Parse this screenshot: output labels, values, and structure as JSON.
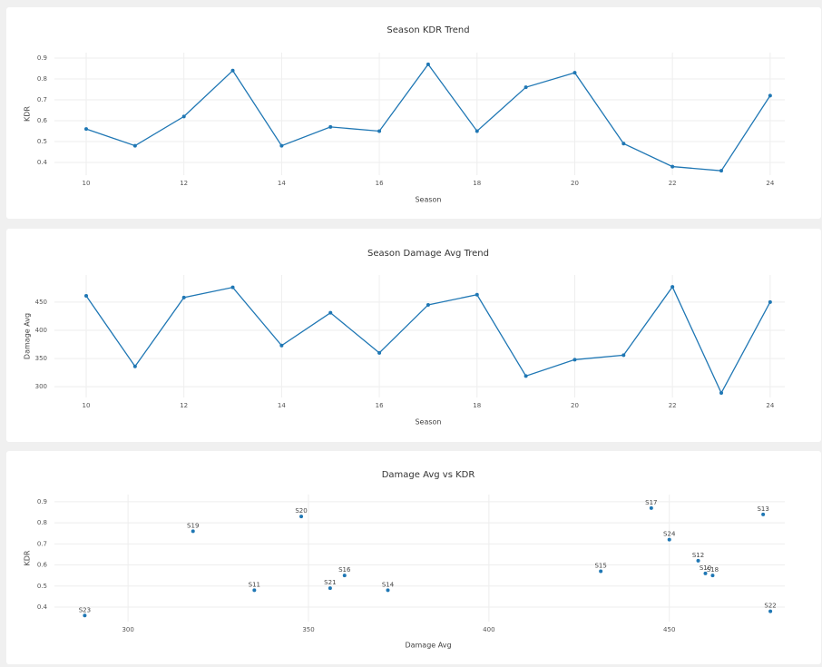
{
  "chart_data": [
    {
      "type": "line",
      "title": "Season KDR Trend",
      "x_label": "Season",
      "y_label": "KDR",
      "x": [
        10,
        11,
        12,
        13,
        14,
        15,
        16,
        17,
        18,
        19,
        20,
        21,
        22,
        23,
        24
      ],
      "values": [
        0.56,
        0.48,
        0.62,
        0.84,
        0.48,
        0.57,
        0.55,
        0.87,
        0.55,
        0.76,
        0.83,
        0.49,
        0.38,
        0.36,
        0.72
      ],
      "color": "#1f77b4",
      "xlim": [
        9.35,
        24.3
      ],
      "ylim": [
        0.339,
        0.926
      ],
      "xticks": [
        10,
        12,
        14,
        16,
        18,
        20,
        22,
        24
      ],
      "yticks": [
        0.4,
        0.5,
        0.6,
        0.7,
        0.8,
        0.9
      ],
      "grid": true
    },
    {
      "type": "line",
      "title": "Season Damage Avg Trend",
      "x_label": "Season",
      "y_label": "Damage Avg",
      "x": [
        10,
        11,
        12,
        13,
        14,
        15,
        16,
        17,
        18,
        19,
        20,
        21,
        22,
        23,
        24
      ],
      "values": [
        461,
        336,
        458,
        476,
        373,
        431,
        360,
        445,
        463,
        319,
        348,
        356,
        477,
        289,
        450
      ],
      "color": "#1f77b4",
      "xlim": [
        9.35,
        24.3
      ],
      "ylim": [
        281,
        498
      ],
      "xticks": [
        10,
        12,
        14,
        16,
        18,
        20,
        22,
        24
      ],
      "yticks": [
        300,
        350,
        400,
        450
      ],
      "grid": true
    },
    {
      "type": "scatter",
      "title": "Damage Avg vs KDR",
      "x_label": "Damage Avg",
      "y_label": "KDR",
      "labels": [
        "S10",
        "S11",
        "S12",
        "S13",
        "S14",
        "S15",
        "S16",
        "S17",
        "S18",
        "S19",
        "S20",
        "S21",
        "S22",
        "S23",
        "S24"
      ],
      "x": [
        460,
        335,
        458,
        476,
        372,
        431,
        360,
        445,
        462,
        318,
        348,
        356,
        478,
        288,
        450
      ],
      "values": [
        0.56,
        0.48,
        0.62,
        0.84,
        0.48,
        0.57,
        0.55,
        0.87,
        0.55,
        0.76,
        0.83,
        0.49,
        0.38,
        0.36,
        0.72
      ],
      "color": "#1f77b4",
      "xlim": [
        279.6,
        482
      ],
      "ylim": [
        0.331,
        0.934
      ],
      "xticks": [
        300,
        350,
        400,
        450
      ],
      "yticks": [
        0.4,
        0.5,
        0.6,
        0.7,
        0.8,
        0.9
      ],
      "grid": true
    }
  ]
}
